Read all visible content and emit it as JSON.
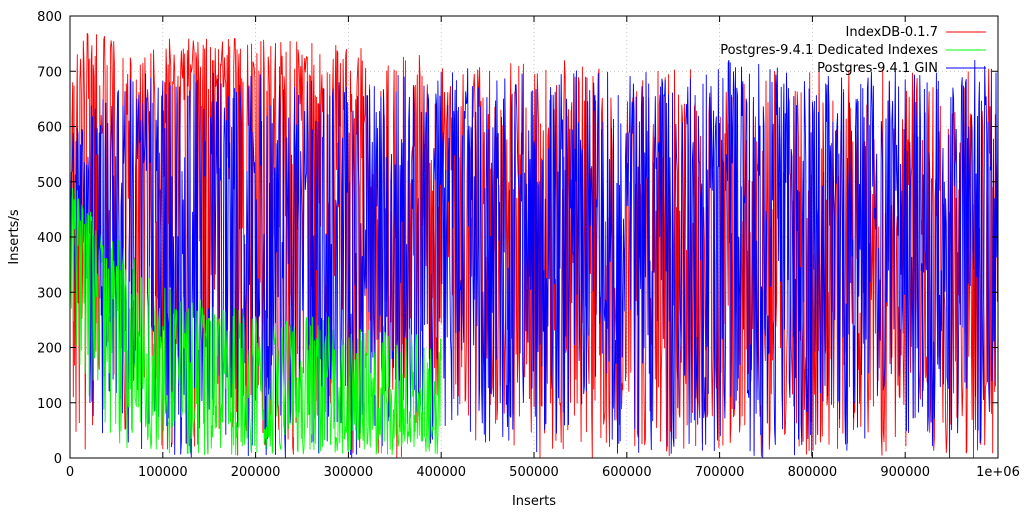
{
  "chart_data": {
    "type": "line",
    "title": "",
    "xlabel": "Inserts",
    "ylabel": "Inserts/s",
    "xlim": [
      0,
      1000000
    ],
    "ylim": [
      0,
      800
    ],
    "x_ticks": [
      0,
      100000,
      200000,
      300000,
      400000,
      500000,
      600000,
      700000,
      800000,
      900000,
      1000000
    ],
    "x_tick_labels": [
      "0",
      "100000",
      "200000",
      "300000",
      "400000",
      "500000",
      "600000",
      "700000",
      "800000",
      "900000",
      "1e+06"
    ],
    "y_ticks": [
      0,
      100,
      200,
      300,
      400,
      500,
      600,
      700,
      800
    ],
    "y_tick_labels": [
      "0",
      "100",
      "200",
      "300",
      "400",
      "500",
      "600",
      "700",
      "800"
    ],
    "grid": true,
    "legend_position": "top-right",
    "series": [
      {
        "name": "IndexDB-0.1.7",
        "color": "#ff0000",
        "x": [
          0,
          25000,
          50000,
          75000,
          100000,
          125000,
          150000,
          175000,
          200000,
          225000,
          250000,
          275000,
          300000,
          325000,
          350000,
          375000,
          400000,
          425000,
          450000,
          475000,
          500000,
          525000,
          550000,
          575000,
          600000,
          625000,
          650000,
          675000,
          700000,
          725000,
          750000,
          775000,
          800000,
          825000,
          850000,
          875000,
          900000,
          925000,
          950000,
          975000,
          1000000
        ],
        "values": [
          560,
          640,
          600,
          590,
          600,
          650,
          640,
          650,
          660,
          640,
          640,
          600,
          560,
          450,
          420,
          400,
          380,
          420,
          400,
          380,
          350,
          330,
          330,
          320,
          310,
          310,
          320,
          320,
          330,
          320,
          320,
          330,
          310,
          330,
          320,
          320,
          330,
          320,
          330,
          320,
          330
        ],
        "min": [
          20,
          10,
          20,
          30,
          10,
          0,
          10,
          0,
          10,
          0,
          10,
          0,
          0,
          0,
          0,
          0,
          0,
          0,
          0,
          0,
          0,
          0,
          0,
          0,
          0,
          0,
          0,
          0,
          0,
          0,
          0,
          0,
          0,
          0,
          0,
          0,
          0,
          0,
          0,
          0,
          0
        ],
        "max": [
          770,
          770,
          760,
          730,
          760,
          760,
          760,
          760,
          760,
          760,
          760,
          740,
          760,
          730,
          740,
          740,
          720,
          720,
          720,
          720,
          720,
          720,
          720,
          710,
          710,
          720,
          710,
          710,
          710,
          710,
          710,
          710,
          720,
          710,
          710,
          710,
          710,
          710,
          700,
          720,
          700
        ]
      },
      {
        "name": "Postgres-9.4.1 Dedicated Indexes",
        "color": "#00ff00",
        "x": [
          0,
          25000,
          50000,
          75000,
          100000,
          125000,
          150000,
          175000,
          200000,
          225000,
          250000,
          275000,
          300000,
          325000,
          350000,
          375000,
          400000
        ],
        "values": [
          450,
          380,
          260,
          200,
          150,
          120,
          120,
          110,
          100,
          95,
          90,
          85,
          80,
          75,
          70,
          65,
          60
        ],
        "min": [
          250,
          60,
          20,
          10,
          5,
          5,
          5,
          5,
          5,
          5,
          5,
          5,
          5,
          5,
          5,
          5,
          5
        ],
        "max": [
          520,
          440,
          400,
          350,
          310,
          300,
          290,
          280,
          260,
          250,
          260,
          260,
          250,
          240,
          240,
          230,
          230
        ]
      },
      {
        "name": "Postgres-9.4.1 GIN",
        "color": "#0000ff",
        "x": [
          0,
          25000,
          50000,
          75000,
          100000,
          125000,
          150000,
          175000,
          200000,
          225000,
          250000,
          275000,
          300000,
          325000,
          350000,
          375000,
          400000,
          425000,
          450000,
          475000,
          500000,
          525000,
          550000,
          575000,
          600000,
          625000,
          650000,
          675000,
          700000,
          725000,
          750000,
          775000,
          800000,
          825000,
          850000,
          875000,
          900000,
          925000,
          950000,
          975000,
          1000000
        ],
        "values": [
          470,
          450,
          440,
          430,
          430,
          440,
          440,
          440,
          450,
          450,
          450,
          450,
          450,
          450,
          450,
          450,
          450,
          450,
          450,
          450,
          450,
          450,
          450,
          450,
          450,
          450,
          450,
          450,
          450,
          450,
          450,
          450,
          450,
          450,
          450,
          450,
          450,
          450,
          450,
          450,
          450
        ],
        "min": [
          330,
          50,
          20,
          10,
          10,
          0,
          0,
          0,
          0,
          0,
          0,
          0,
          0,
          0,
          0,
          0,
          0,
          0,
          0,
          0,
          0,
          0,
          0,
          0,
          0,
          0,
          0,
          0,
          0,
          0,
          0,
          0,
          0,
          0,
          0,
          0,
          0,
          0,
          0,
          0,
          0
        ],
        "max": [
          580,
          690,
          700,
          700,
          690,
          700,
          720,
          690,
          700,
          700,
          690,
          700,
          700,
          700,
          700,
          700,
          700,
          700,
          740,
          700,
          700,
          720,
          700,
          720,
          700,
          700,
          700,
          700,
          720,
          720,
          720,
          700,
          700,
          700,
          700,
          700,
          720,
          700,
          700,
          720,
          700
        ]
      }
    ]
  }
}
